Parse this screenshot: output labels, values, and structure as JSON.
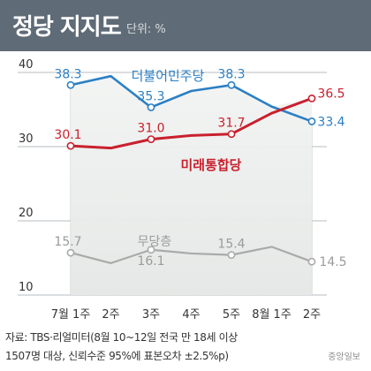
{
  "header": {
    "title": "정당 지지도",
    "unit": "단위: %"
  },
  "source": {
    "line1": "자료: TBS·리얼미터(8월 10~12일 전국 만 18세 이상",
    "line2": "1507명 대상, 신뢰수준 95%에 표본오차 ±2.5%p)"
  },
  "logo": {
    "text": "중앙일보",
    "color": "#8a8a8a"
  },
  "chart_data": {
    "type": "line",
    "categories": [
      "7월 1주",
      "2주",
      "3주",
      "4주",
      "5주",
      "8월 1주",
      "2주"
    ],
    "ylim": [
      10,
      42
    ],
    "y_ticks": [
      "10",
      "20",
      "30",
      "40"
    ],
    "grid": true,
    "series": [
      {
        "name": "더불어민주당",
        "color": "#2b7fc4",
        "values": [
          38.3,
          39.5,
          35.3,
          37.5,
          38.3,
          35.4,
          33.4
        ],
        "labels": [
          "38.3",
          "",
          "35.3",
          "",
          "38.3",
          "",
          "33.4"
        ]
      },
      {
        "name": "미래통합당",
        "color": "#c9202e",
        "values": [
          30.1,
          29.8,
          31.0,
          31.5,
          31.7,
          34.5,
          36.5
        ],
        "labels": [
          "30.1",
          "",
          "31.0",
          "",
          "31.7",
          "",
          "36.5"
        ]
      },
      {
        "name": "무당층",
        "color": "#a9aaa9",
        "values": [
          15.7,
          14.3,
          16.1,
          15.6,
          15.4,
          16.5,
          14.5
        ],
        "labels": [
          "15.7",
          "",
          "16.1",
          "",
          "15.4",
          "",
          "14.5"
        ]
      }
    ],
    "colors": {
      "grid": "#b7bcc0",
      "text": "#333333",
      "shade": "#e9ecea",
      "line_label": "#9b9b9b"
    }
  }
}
